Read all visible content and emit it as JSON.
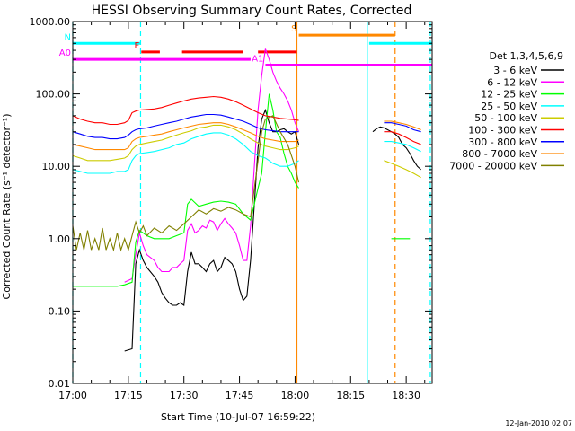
{
  "chart_data": {
    "type": "line",
    "title": "HESSI Observing Summary Count Rates, Corrected",
    "xlabel": "Start Time (10-Jul-07 16:59:22)",
    "ylabel": "Corrected Count Rate (s⁻¹ detector⁻¹)",
    "ylog": true,
    "ylim": [
      0.01,
      1000
    ],
    "xlim_minutes": [
      0,
      97
    ],
    "x_ticks": [
      {
        "m": 0,
        "label": "17:00"
      },
      {
        "m": 15,
        "label": "17:15"
      },
      {
        "m": 30,
        "label": "17:30"
      },
      {
        "m": 45,
        "label": "17:45"
      },
      {
        "m": 60,
        "label": "18:00"
      },
      {
        "m": 75,
        "label": "18:15"
      },
      {
        "m": 90,
        "label": "18:30"
      }
    ],
    "y_ticks": [
      {
        "v": 0.01,
        "label": "0.01"
      },
      {
        "v": 0.1,
        "label": "0.10"
      },
      {
        "v": 1,
        "label": "1.00"
      },
      {
        "v": 10,
        "label": "10.00"
      },
      {
        "v": 100,
        "label": "100.00"
      },
      {
        "v": 1000,
        "label": "1000.00"
      }
    ],
    "legend_title": "Det 1,3,4,5,6,9",
    "series": [
      {
        "name": "3 - 6 keV",
        "color": "#000000",
        "x": [
          14,
          16,
          17,
          18,
          19,
          20,
          22,
          23,
          24,
          25,
          26,
          27,
          28,
          29,
          30,
          31,
          32,
          33,
          34,
          35,
          36,
          37,
          38,
          39,
          40,
          41,
          42,
          43,
          44,
          45,
          46,
          47,
          48,
          49,
          50,
          51,
          52,
          53,
          54,
          55,
          56,
          57,
          58,
          59,
          60,
          61,
          81,
          82,
          83,
          84,
          85,
          86,
          87,
          88,
          89,
          90,
          91,
          92,
          93,
          94
        ],
        "y": [
          0.028,
          0.03,
          0.45,
          0.7,
          0.5,
          0.4,
          0.3,
          0.25,
          0.18,
          0.15,
          0.13,
          0.12,
          0.12,
          0.13,
          0.12,
          0.35,
          0.65,
          0.45,
          0.45,
          0.4,
          0.35,
          0.45,
          0.5,
          0.35,
          0.4,
          0.55,
          0.5,
          0.45,
          0.35,
          0.2,
          0.14,
          0.16,
          0.5,
          3,
          18,
          45,
          60,
          40,
          30,
          30,
          32,
          33,
          30,
          28,
          30,
          20,
          30,
          33,
          35,
          34,
          32,
          30,
          28,
          25,
          20,
          18,
          15,
          12,
          10,
          9
        ]
      },
      {
        "name": "6 - 12 keV",
        "color": "#ff00ff",
        "x": [
          14,
          16,
          17,
          18,
          19,
          20,
          22,
          23,
          24,
          25,
          26,
          27,
          28,
          29,
          30,
          31,
          32,
          33,
          34,
          35,
          36,
          37,
          38,
          39,
          40,
          41,
          42,
          43,
          44,
          45,
          46,
          47,
          48,
          49,
          50,
          51,
          52,
          53,
          54,
          55,
          56,
          57,
          58,
          59,
          60,
          61
        ],
        "y": [
          0.25,
          0.28,
          0.6,
          1.2,
          0.8,
          0.6,
          0.5,
          0.4,
          0.35,
          0.35,
          0.35,
          0.4,
          0.4,
          0.45,
          0.5,
          1.3,
          1.6,
          1.2,
          1.3,
          1.5,
          1.4,
          1.8,
          1.7,
          1.3,
          1.6,
          1.9,
          1.6,
          1.4,
          1.2,
          0.8,
          0.5,
          0.5,
          1.5,
          10,
          60,
          180,
          420,
          300,
          200,
          150,
          120,
          100,
          80,
          60,
          40,
          30
        ]
      },
      {
        "name": "12 - 25 keV",
        "color": "#00ff00",
        "x": [
          0,
          4,
          8,
          12,
          14,
          16,
          17,
          18,
          19,
          20,
          22,
          24,
          26,
          28,
          30,
          31,
          32,
          34,
          36,
          38,
          40,
          42,
          44,
          46,
          48,
          49,
          50,
          51,
          52,
          53,
          54,
          55,
          56,
          57,
          58,
          59,
          60,
          61,
          86,
          87,
          88,
          89,
          90,
          91
        ],
        "y": [
          0.22,
          0.22,
          0.22,
          0.22,
          0.23,
          0.25,
          0.9,
          1.3,
          1.2,
          1.1,
          1.0,
          1.0,
          1.0,
          1.1,
          1.2,
          3.0,
          3.5,
          2.8,
          3.0,
          3.2,
          3.3,
          3.2,
          3.0,
          2.2,
          1.8,
          3.0,
          5,
          8,
          30,
          100,
          60,
          30,
          25,
          15,
          10,
          8,
          6,
          5,
          1.0,
          1.0,
          1.0,
          1.0,
          1.0,
          1.0
        ]
      },
      {
        "name": "25 - 50 keV",
        "color": "#00ffff",
        "x": [
          0,
          2,
          4,
          6,
          8,
          10,
          12,
          14,
          15,
          16,
          17,
          18,
          20,
          22,
          24,
          26,
          28,
          30,
          32,
          34,
          36,
          38,
          40,
          42,
          44,
          46,
          48,
          50,
          52,
          53,
          54,
          55,
          56,
          57,
          58,
          59,
          60,
          61,
          84,
          86,
          88,
          90,
          92,
          94
        ],
        "y": [
          9,
          8.5,
          8,
          8,
          8,
          8,
          8.5,
          8.5,
          9,
          12,
          14,
          15,
          15.5,
          16,
          17,
          18,
          20,
          21,
          24,
          26,
          28,
          29,
          29,
          27,
          24,
          20,
          16,
          14,
          13,
          12,
          11,
          10.5,
          10,
          10,
          10,
          10.5,
          11,
          12,
          22,
          22,
          21,
          20,
          18,
          16
        ]
      },
      {
        "name": "50 - 100 keV",
        "color": "#cccc00",
        "x": [
          0,
          2,
          4,
          6,
          8,
          10,
          12,
          14,
          15,
          16,
          17,
          18,
          20,
          22,
          24,
          26,
          28,
          30,
          32,
          34,
          36,
          38,
          40,
          42,
          44,
          46,
          48,
          50,
          52,
          54,
          56,
          58,
          60,
          61,
          84,
          86,
          88,
          90,
          92,
          94
        ],
        "y": [
          14,
          13,
          12,
          12,
          12,
          12,
          12.5,
          13,
          14,
          17,
          19,
          20,
          21,
          22,
          23,
          25,
          27,
          29,
          31,
          34,
          35,
          37,
          37,
          35,
          32,
          28,
          24,
          21,
          19,
          18,
          17,
          17,
          18,
          19,
          12,
          11,
          10,
          9,
          8,
          7
        ]
      },
      {
        "name": "100 - 300 keV",
        "color": "#ff0000",
        "x": [
          0,
          2,
          4,
          6,
          8,
          10,
          12,
          14,
          15,
          16,
          17,
          18,
          20,
          22,
          24,
          26,
          28,
          30,
          32,
          34,
          36,
          38,
          40,
          42,
          44,
          46,
          48,
          50,
          52,
          54,
          56,
          58,
          60,
          61,
          84,
          86,
          88,
          90,
          92,
          94
        ],
        "y": [
          50,
          45,
          42,
          40,
          40,
          38,
          38,
          40,
          43,
          55,
          58,
          60,
          61,
          62,
          65,
          70,
          75,
          80,
          85,
          88,
          90,
          92,
          90,
          85,
          78,
          70,
          62,
          55,
          50,
          48,
          46,
          45,
          44,
          43,
          30,
          30,
          28,
          25,
          22,
          20
        ]
      },
      {
        "name": "300 - 800 keV",
        "color": "#0000ff",
        "x": [
          0,
          2,
          4,
          6,
          8,
          10,
          12,
          14,
          15,
          16,
          17,
          18,
          20,
          22,
          24,
          26,
          28,
          30,
          32,
          34,
          36,
          38,
          40,
          42,
          44,
          46,
          48,
          50,
          52,
          54,
          56,
          58,
          60,
          61,
          84,
          86,
          88,
          90,
          92,
          94
        ],
        "y": [
          30,
          28,
          26,
          25,
          25,
          24,
          24,
          25,
          27,
          30,
          32,
          33,
          34,
          36,
          38,
          40,
          42,
          45,
          48,
          50,
          52,
          52,
          51,
          48,
          45,
          42,
          38,
          34,
          32,
          31,
          30,
          30,
          30,
          30,
          40,
          40,
          38,
          36,
          32,
          30
        ]
      },
      {
        "name": "800 - 7000 keV",
        "color": "#ff8800",
        "x": [
          0,
          2,
          4,
          6,
          8,
          10,
          12,
          14,
          15,
          16,
          17,
          18,
          20,
          22,
          24,
          26,
          28,
          30,
          32,
          34,
          36,
          38,
          40,
          42,
          44,
          46,
          48,
          50,
          52,
          54,
          56,
          58,
          60,
          61,
          84,
          86,
          88,
          90,
          92,
          94
        ],
        "y": [
          20,
          19,
          18,
          17,
          17,
          17,
          17,
          17,
          18,
          22,
          24,
          25,
          26,
          27,
          28,
          30,
          32,
          34,
          36,
          38,
          39,
          40,
          40,
          38,
          35,
          32,
          29,
          26,
          24,
          23,
          22,
          22,
          22,
          23,
          42,
          42,
          40,
          38,
          35,
          32
        ]
      },
      {
        "name": "7000 - 20000 keV",
        "color": "#808000",
        "x": [
          0,
          1,
          2,
          3,
          4,
          5,
          6,
          7,
          8,
          9,
          10,
          11,
          12,
          13,
          14,
          15,
          16,
          17,
          18,
          19,
          20,
          22,
          24,
          26,
          28,
          30,
          32,
          34,
          36,
          38,
          40,
          42,
          44,
          46,
          48,
          49,
          50,
          51,
          52,
          54,
          56,
          58,
          60,
          61
        ],
        "y": [
          1.5,
          0.7,
          1.2,
          0.7,
          1.3,
          0.7,
          1.0,
          0.7,
          1.4,
          0.7,
          1.0,
          0.7,
          1.2,
          0.7,
          1.0,
          0.7,
          1.1,
          1.7,
          1.2,
          1.5,
          1.1,
          1.4,
          1.2,
          1.5,
          1.3,
          1.6,
          2.0,
          2.5,
          2.2,
          2.6,
          2.4,
          2.7,
          2.5,
          2.2,
          2.0,
          5,
          12,
          30,
          45,
          50,
          30,
          20,
          10,
          6
        ]
      }
    ],
    "flags": [
      {
        "label": "N",
        "color": "#00ffff",
        "y": 500,
        "segments": [
          [
            0,
            18.3
          ],
          [
            80,
            97
          ]
        ]
      },
      {
        "label": "F",
        "color": "#ff0000",
        "y": 380,
        "segments": [
          [
            18.5,
            23.5
          ],
          [
            29.5,
            46
          ],
          [
            50,
            60.5
          ]
        ]
      },
      {
        "label": "S",
        "color": "#ff8800",
        "y": 650,
        "segments": [
          [
            61,
            87
          ]
        ]
      },
      {
        "label": "A0",
        "color": "#ff00ff",
        "y": 300,
        "segments": [
          [
            0,
            48
          ]
        ]
      },
      {
        "label": "A1",
        "color": "#ff00ff",
        "y": 250,
        "segments": [
          [
            52,
            97
          ]
        ]
      }
    ],
    "vlines": [
      {
        "m": 0,
        "color": "#00ffff",
        "style": "dashed"
      },
      {
        "m": 18.3,
        "color": "#00ffff",
        "style": "dashed"
      },
      {
        "m": 60.5,
        "color": "#ff8800",
        "style": "solid"
      },
      {
        "m": 79.5,
        "color": "#00ffff",
        "style": "solid"
      },
      {
        "m": 87,
        "color": "#ff8800",
        "style": "dashed"
      },
      {
        "m": 96.5,
        "color": "#00ffff",
        "style": "dashed"
      }
    ]
  },
  "footer_date": "12-Jan-2010 02:07"
}
